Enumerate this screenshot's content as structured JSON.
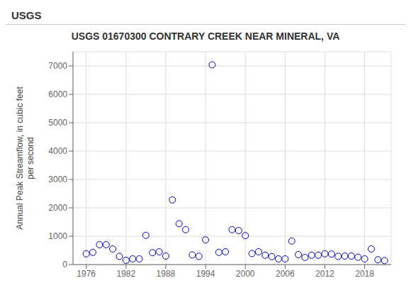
{
  "chart_data": {
    "type": "scatter",
    "title": "USGS 01670300 CONTRARY CREEK NEAR MINERAL, VA",
    "ylabel": "Annual Peak Streamflow, in cubic feet\nper second",
    "annotations": [
      "USGS"
    ],
    "x": [
      1976,
      1977,
      1978,
      1979,
      1980,
      1981,
      1982,
      1983,
      1984,
      1985,
      1986,
      1987,
      1988,
      1989,
      1990,
      1991,
      1992,
      1993,
      1994,
      1995,
      1996,
      1997,
      1998,
      1999,
      2000,
      2001,
      2002,
      2003,
      2004,
      2005,
      2006,
      2007,
      2008,
      2009,
      2010,
      2011,
      2012,
      2013,
      2014,
      2015,
      2016,
      2017,
      2018,
      2019,
      2020,
      2021
    ],
    "values": [
      380,
      430,
      700,
      700,
      550,
      290,
      150,
      200,
      200,
      1030,
      420,
      450,
      300,
      2280,
      1440,
      1230,
      340,
      290,
      870,
      7040,
      430,
      450,
      1230,
      1200,
      1020,
      390,
      450,
      330,
      280,
      200,
      200,
      830,
      350,
      250,
      330,
      330,
      380,
      370,
      290,
      300,
      300,
      260,
      200,
      550,
      170,
      140
    ],
    "color": "#0000cc",
    "marker": "circle",
    "xlim": [
      1974,
      2022
    ],
    "ylim": [
      0,
      7500
    ],
    "xticks": [
      1976,
      1982,
      1988,
      1994,
      2000,
      2006,
      2012,
      2018
    ],
    "yticks": [
      0,
      1000,
      2000,
      3000,
      4000,
      5000,
      6000,
      7000
    ],
    "grid": true
  }
}
